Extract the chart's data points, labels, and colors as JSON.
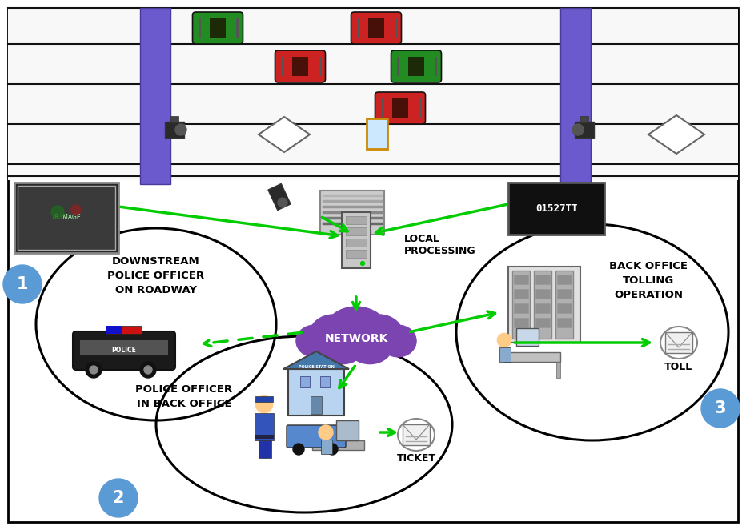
{
  "bg_color": "#ffffff",
  "border_color": "#000000",
  "pillar_color": "#6a5acd",
  "pillar_edge": "#4a3a9a",
  "car_green": "#228B22",
  "car_red": "#cc2222",
  "car_dark": "#1a0a00",
  "arrow_green": "#00cc00",
  "network_color": "#7b44b0",
  "circle_fill": "#5b9bd5",
  "circle_text": "#ffffff",
  "text_color": "#000000",
  "road_bg": "#f8f8f8",
  "labels": {
    "local_processing": "LOCAL\nPROCESSING",
    "network": "NETWORK",
    "downstream": "DOWNSTREAM\nPOLICE OFFICER\nON ROADWAY",
    "police_back": "POLICE OFFICER\nIN BACK OFFICE",
    "back_office": "BACK OFFICE\nTOLLING\nOPERATION",
    "toll": "TOLL",
    "ticket": "TICKET"
  }
}
